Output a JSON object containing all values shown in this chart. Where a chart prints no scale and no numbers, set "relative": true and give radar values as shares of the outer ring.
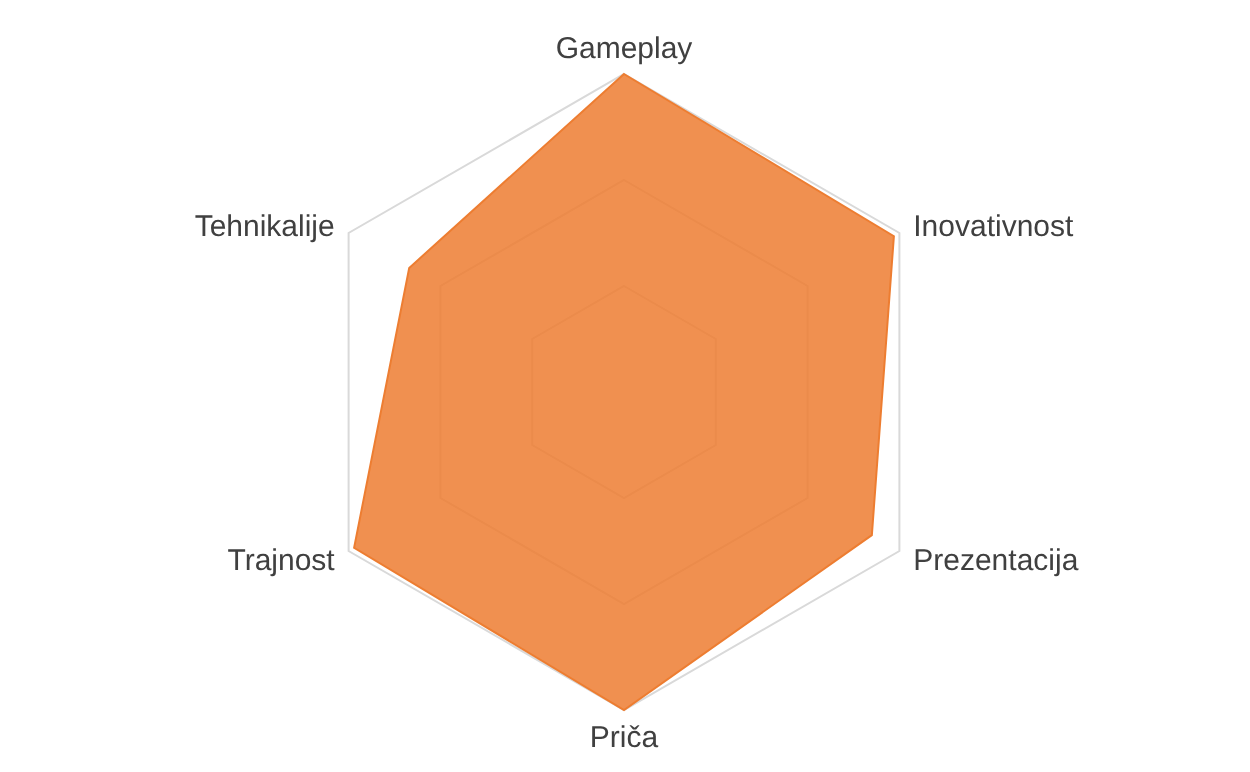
{
  "chart_data": {
    "type": "radar",
    "relative": true,
    "categories": [
      "Gameplay",
      "Inovativnost",
      "Prezentacija",
      "Priča",
      "Trajnost",
      "Tehnikalije"
    ],
    "series": [
      {
        "color": "#ed7d31",
        "values": [
          1,
          0.98,
          0.9,
          1,
          0.98,
          0.78
        ]
      }
    ],
    "grid": true
  }
}
